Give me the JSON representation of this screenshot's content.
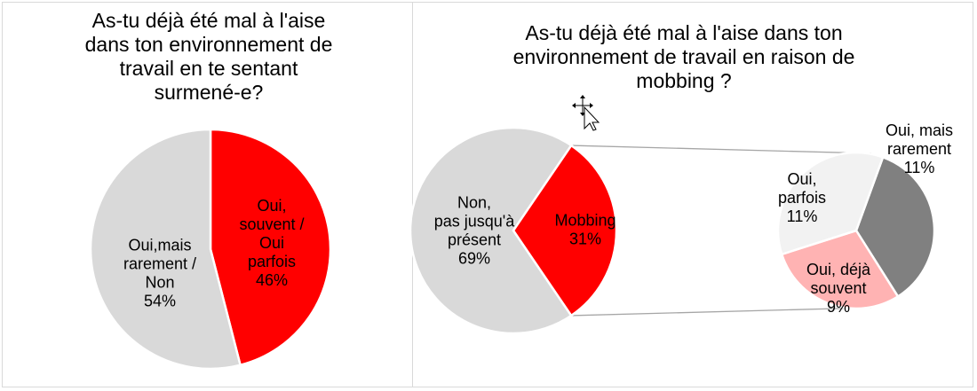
{
  "chart_data": [
    {
      "type": "pie",
      "title_lines": [
        "As-tu déjà été mal à l'aise",
        "dans ton environnement de",
        "travail en te sentant",
        "surmené-e?"
      ],
      "slices": [
        {
          "label_lines": [
            "Oui,",
            "souvent /",
            "Oui",
            "parfois",
            "46%"
          ],
          "value": 46,
          "color": "#ff0000"
        },
        {
          "label_lines": [
            "Oui,mais",
            "rarement /",
            "Non",
            "54%"
          ],
          "value": 54,
          "color": "#d9d9d9"
        }
      ]
    },
    {
      "type": "pie",
      "subtype": "pie-of-pie",
      "title_lines": [
        "As-tu déjà été mal à l'aise dans ton",
        "environnement de travail en raison de",
        "mobbing ?"
      ],
      "main_slices": [
        {
          "label_lines": [
            "Mobbing",
            "31%"
          ],
          "value": 31,
          "color": "#ff0000"
        },
        {
          "label_lines": [
            "Non,",
            "pas jusqu'à",
            "présent",
            "69%"
          ],
          "value": 69,
          "color": "#d9d9d9"
        }
      ],
      "secondary_slices": [
        {
          "label_lines": [
            "Oui, mais",
            "rarement",
            "11%"
          ],
          "value": 11,
          "color": "#808080"
        },
        {
          "label_lines": [
            "Oui, déjà",
            "souvent",
            "9%"
          ],
          "value": 9,
          "color": "#ffb3b3"
        },
        {
          "label_lines": [
            "Oui,",
            "parfois",
            "11%"
          ],
          "value": 11,
          "color": "#f2f2f2"
        }
      ]
    }
  ]
}
